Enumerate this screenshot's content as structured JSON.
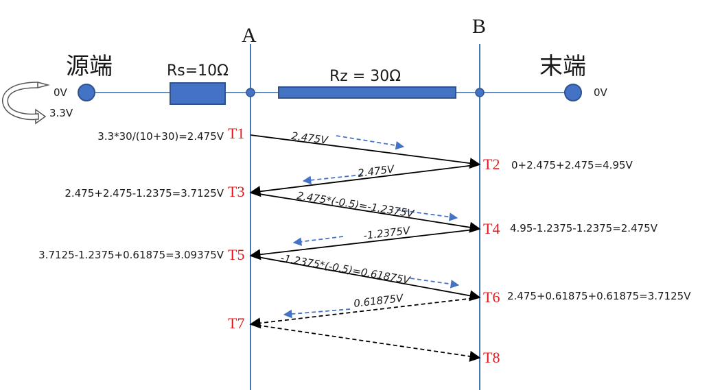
{
  "colors": {
    "line": "#2f6aad",
    "component_fill": "#4472c4",
    "component_stroke": "#2f528f",
    "arrow": "#000000",
    "hint_arrow": "#4472c4",
    "time_tag": "#e3151a"
  },
  "labels": {
    "source": "源端",
    "end": "末端",
    "node_a": "A",
    "node_b": "B",
    "rs": "Rs=10Ω",
    "rz": "Rz = 30Ω",
    "src_low": "0V",
    "src_high": "3.3V",
    "end_level": "0V"
  },
  "times": [
    "T1",
    "T2",
    "T3",
    "T4",
    "T5",
    "T6",
    "T7",
    "T8"
  ],
  "equations": {
    "t1": "3.3*30/(10+30)=2.475V",
    "t2": "0+2.475+2.475=4.95V",
    "t3": "2.475+2.475-1.2375=3.7125V",
    "t4": "4.95-1.2375-1.2375=2.475V",
    "t5": "3.7125-1.2375+0.61875=3.09375V",
    "t6": "2.475+0.61875+0.61875=3.7125V"
  },
  "waves": {
    "w1": "2.475V",
    "w2": "2.475V",
    "w3": "2.475*(-0.5)=-1.2375V",
    "w4": "-1.2375V",
    "w5": "-1.2375*(-0.5)=0.61875V",
    "w6": "0.61875V"
  }
}
